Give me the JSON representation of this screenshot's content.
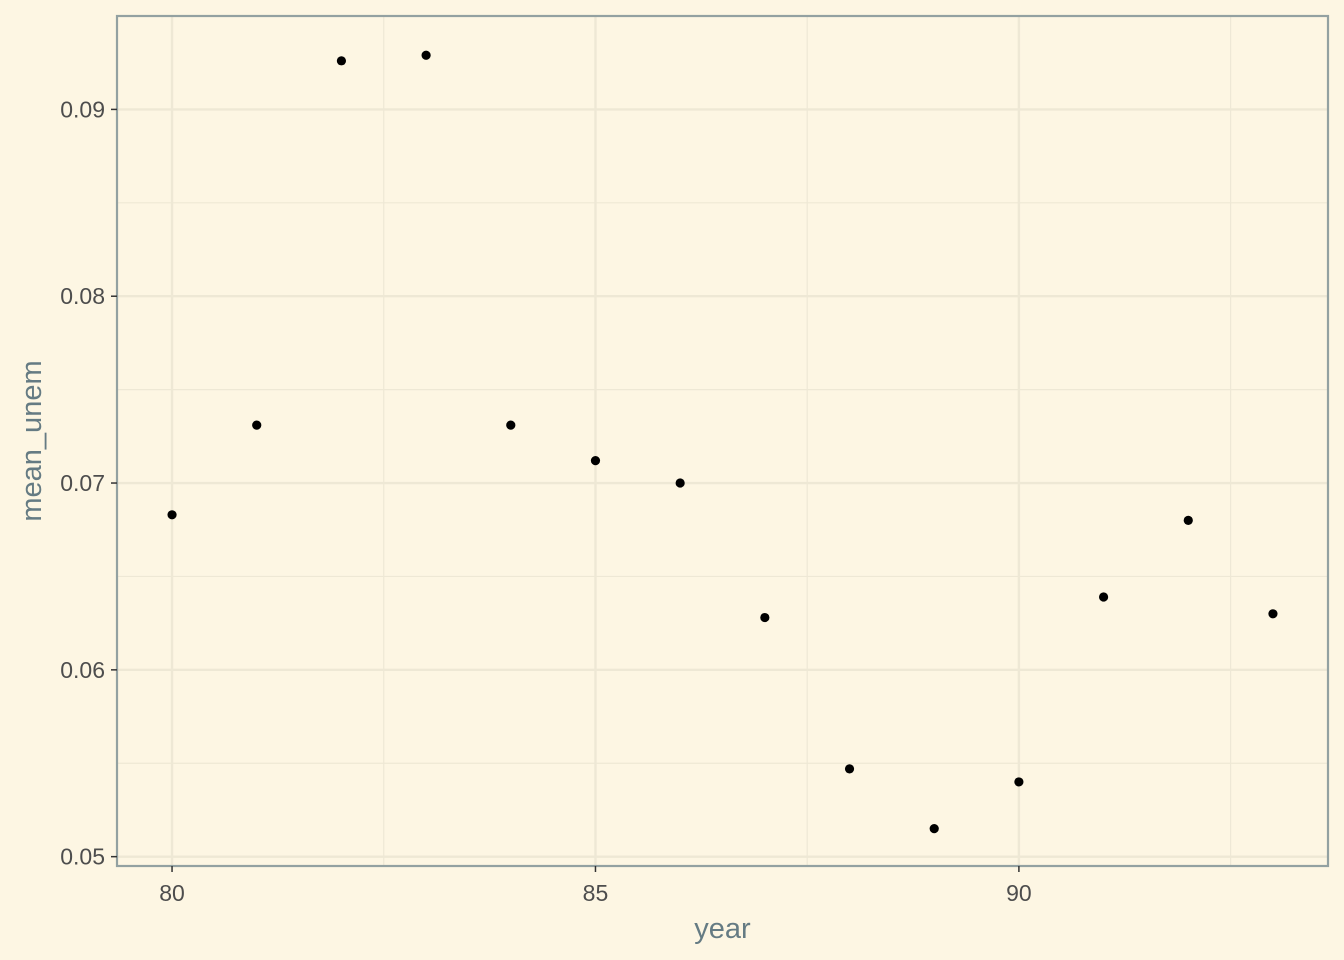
{
  "chart_data": {
    "type": "scatter",
    "title": "",
    "xlabel": "year",
    "ylabel": "mean_unem",
    "xlim": [
      79.35,
      93.65
    ],
    "ylim": [
      0.0495,
      0.095
    ],
    "x_ticks": [
      80,
      85,
      90
    ],
    "x_tick_labels": [
      "80",
      "85",
      "90"
    ],
    "y_ticks": [
      0.05,
      0.06,
      0.07,
      0.08,
      0.09
    ],
    "y_tick_labels": [
      "0.05",
      "0.06",
      "0.07",
      "0.08",
      "0.09"
    ],
    "grid": true,
    "legend": "none",
    "point_color": "#000000",
    "points": [
      {
        "x": 80,
        "y": 0.0683
      },
      {
        "x": 81,
        "y": 0.0731
      },
      {
        "x": 82,
        "y": 0.0926
      },
      {
        "x": 83,
        "y": 0.0929
      },
      {
        "x": 84,
        "y": 0.0731
      },
      {
        "x": 85,
        "y": 0.0712
      },
      {
        "x": 86,
        "y": 0.07
      },
      {
        "x": 87,
        "y": 0.0628
      },
      {
        "x": 88,
        "y": 0.0547
      },
      {
        "x": 89,
        "y": 0.0515
      },
      {
        "x": 90,
        "y": 0.054
      },
      {
        "x": 91,
        "y": 0.0639
      },
      {
        "x": 92,
        "y": 0.068
      },
      {
        "x": 93,
        "y": 0.063
      }
    ]
  },
  "colors": {
    "background": "#fdf6e3",
    "grid": "#eee8d5",
    "panel_border": "#93a1a1",
    "axis_title": "#657b83",
    "tick_label": "#4d4d4d"
  }
}
